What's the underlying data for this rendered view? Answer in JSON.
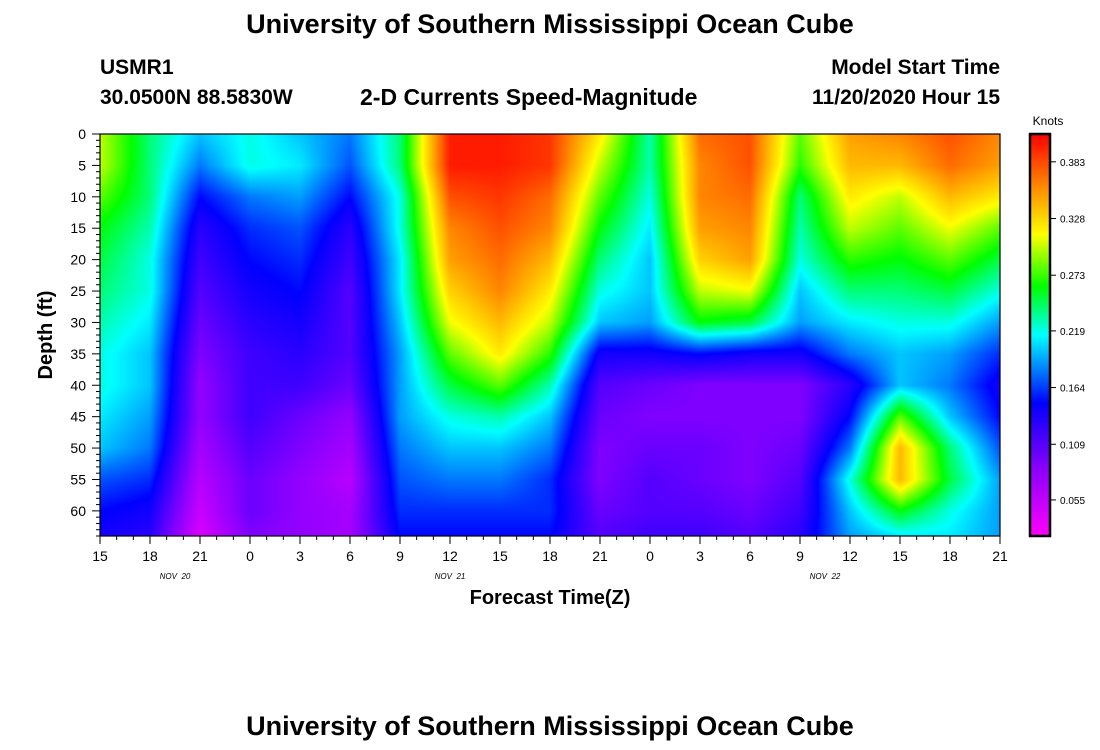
{
  "header": {
    "title": "University of Southern Mississippi Ocean Cube",
    "station_id": "USMR1",
    "coordinates": "30.0500N 88.5830W",
    "product": "2-D Currents Speed-Magnitude",
    "model_start_label": "Model Start Time",
    "model_start_value": "11/20/2020 Hour 15"
  },
  "footer": {
    "title": "University of Southern Mississippi Ocean Cube"
  },
  "chart_data": {
    "type": "heatmap",
    "title": "2-D Currents Speed-Magnitude",
    "xlabel": "Forecast Time(Z)",
    "ylabel": "Depth (ft)",
    "x_ticks": [
      "15",
      "18",
      "21",
      "0",
      "3",
      "6",
      "9",
      "12",
      "15",
      "18",
      "21",
      "0",
      "3",
      "6",
      "9",
      "12",
      "15",
      "18",
      "21"
    ],
    "x_date_labels": [
      {
        "label": "NOV  20",
        "at_tick": 1.5
      },
      {
        "label": "NOV  21",
        "at_tick": 7
      },
      {
        "label": "NOV  22",
        "at_tick": 14.5
      }
    ],
    "y_ticks": [
      "0",
      "5",
      "10",
      "15",
      "20",
      "25",
      "30",
      "35",
      "40",
      "45",
      "50",
      "55",
      "60"
    ],
    "ylim": [
      0,
      64
    ],
    "xlim_hours": [
      0,
      54
    ],
    "colorbar": {
      "label": "Knots",
      "ticks": [
        "0.383",
        "0.328",
        "0.273",
        "0.219",
        "0.164",
        "0.109",
        "0.055"
      ],
      "range": [
        0.02,
        0.41
      ]
    },
    "time_hours": [
      0,
      3,
      6,
      9,
      12,
      15,
      18,
      21,
      24,
      27,
      30,
      33,
      36,
      39,
      42,
      45,
      48,
      51,
      54
    ],
    "depth_ft": [
      0,
      5,
      10,
      15,
      20,
      25,
      30,
      35,
      40,
      45,
      50,
      55,
      60,
      64
    ],
    "speed_knots": [
      [
        0.3,
        0.24,
        0.2,
        0.22,
        0.2,
        0.18,
        0.24,
        0.4,
        0.4,
        0.39,
        0.32,
        0.23,
        0.37,
        0.38,
        0.28,
        0.35,
        0.36,
        0.38,
        0.36
      ],
      [
        0.3,
        0.24,
        0.18,
        0.22,
        0.21,
        0.17,
        0.24,
        0.4,
        0.4,
        0.39,
        0.3,
        0.23,
        0.36,
        0.38,
        0.27,
        0.34,
        0.34,
        0.37,
        0.35
      ],
      [
        0.28,
        0.24,
        0.15,
        0.18,
        0.19,
        0.15,
        0.22,
        0.38,
        0.39,
        0.37,
        0.28,
        0.22,
        0.36,
        0.37,
        0.24,
        0.32,
        0.3,
        0.34,
        0.32
      ],
      [
        0.26,
        0.23,
        0.13,
        0.16,
        0.17,
        0.13,
        0.22,
        0.36,
        0.38,
        0.36,
        0.26,
        0.21,
        0.35,
        0.36,
        0.23,
        0.3,
        0.28,
        0.31,
        0.28
      ],
      [
        0.25,
        0.22,
        0.12,
        0.15,
        0.16,
        0.12,
        0.21,
        0.35,
        0.37,
        0.34,
        0.24,
        0.2,
        0.33,
        0.35,
        0.22,
        0.27,
        0.26,
        0.28,
        0.25
      ],
      [
        0.24,
        0.22,
        0.11,
        0.14,
        0.15,
        0.11,
        0.21,
        0.33,
        0.36,
        0.32,
        0.22,
        0.2,
        0.3,
        0.31,
        0.2,
        0.24,
        0.24,
        0.25,
        0.22
      ],
      [
        0.23,
        0.21,
        0.1,
        0.13,
        0.14,
        0.11,
        0.2,
        0.31,
        0.34,
        0.3,
        0.2,
        0.19,
        0.26,
        0.25,
        0.19,
        0.21,
        0.22,
        0.22,
        0.19
      ],
      [
        0.22,
        0.2,
        0.09,
        0.12,
        0.13,
        0.11,
        0.19,
        0.28,
        0.32,
        0.27,
        0.14,
        0.14,
        0.15,
        0.14,
        0.14,
        0.18,
        0.2,
        0.19,
        0.16
      ],
      [
        0.22,
        0.2,
        0.08,
        0.12,
        0.12,
        0.1,
        0.19,
        0.25,
        0.28,
        0.23,
        0.11,
        0.1,
        0.09,
        0.09,
        0.09,
        0.13,
        0.2,
        0.18,
        0.14
      ],
      [
        0.21,
        0.19,
        0.08,
        0.12,
        0.1,
        0.08,
        0.19,
        0.22,
        0.23,
        0.2,
        0.1,
        0.09,
        0.09,
        0.09,
        0.09,
        0.15,
        0.28,
        0.2,
        0.15
      ],
      [
        0.2,
        0.18,
        0.07,
        0.11,
        0.09,
        0.07,
        0.18,
        0.2,
        0.2,
        0.18,
        0.09,
        0.1,
        0.1,
        0.09,
        0.1,
        0.18,
        0.34,
        0.24,
        0.17
      ],
      [
        0.17,
        0.16,
        0.06,
        0.1,
        0.08,
        0.06,
        0.17,
        0.18,
        0.18,
        0.16,
        0.09,
        0.11,
        0.1,
        0.09,
        0.11,
        0.22,
        0.34,
        0.25,
        0.19
      ],
      [
        0.15,
        0.14,
        0.05,
        0.1,
        0.08,
        0.07,
        0.16,
        0.16,
        0.16,
        0.16,
        0.1,
        0.11,
        0.11,
        0.1,
        0.12,
        0.2,
        0.26,
        0.22,
        0.19
      ],
      [
        0.14,
        0.13,
        0.04,
        0.09,
        0.08,
        0.07,
        0.15,
        0.15,
        0.15,
        0.15,
        0.11,
        0.12,
        0.12,
        0.11,
        0.13,
        0.19,
        0.21,
        0.21,
        0.19
      ]
    ]
  }
}
